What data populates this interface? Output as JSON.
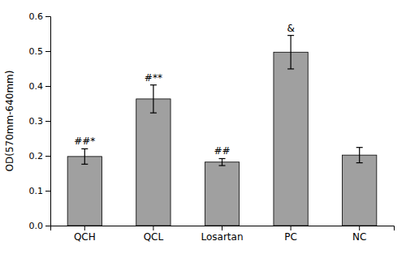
{
  "chart_data": {
    "type": "bar",
    "categories": [
      "QCH",
      "QCL",
      "Losartan",
      "PC",
      "NC"
    ],
    "values": [
      0.198,
      0.363,
      0.182,
      0.497,
      0.202
    ],
    "errors": [
      0.022,
      0.04,
      0.01,
      0.048,
      0.022
    ],
    "color": "#a0a0a0",
    "ylabel": "OD(570mm-640mm)",
    "ylim": [
      0,
      0.6
    ],
    "yticks": [
      {
        "value": 0,
        "label": "0.0"
      },
      0.1,
      0.2,
      0.3,
      0.4,
      0.5,
      0.6
    ],
    "annotations": [
      {
        "text": "##*",
        "x": "QCH"
      },
      {
        "text": "#**",
        "x": "QCL"
      },
      {
        "text": "##",
        "x": "Losartan"
      },
      {
        "text": "&",
        "x": "PC"
      }
    ],
    "grid": false
  }
}
